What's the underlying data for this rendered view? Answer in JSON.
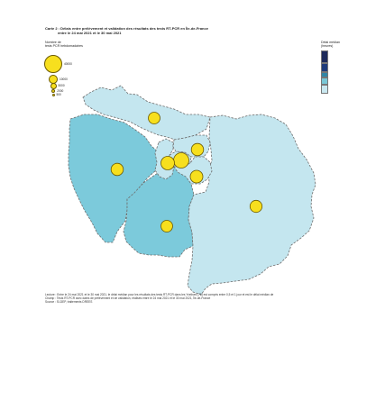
{
  "title": {
    "line1": "Carte 2 : Délais entre prélèvement et validation des résultats des tests RT-PCR en Île-de-France",
    "line2": "entre le 24 mai 2021 et le 30 mai 2021"
  },
  "bubble_legend": {
    "title_line1": "Nombre de",
    "title_line2": "tests PCR hebdomadaires",
    "entries": [
      {
        "label": "40000",
        "size": 1.0
      },
      {
        "label": "10000",
        "size": 0.5
      },
      {
        "label": "5000",
        "size": 0.35
      },
      {
        "label": "2000",
        "size": 0.22
      },
      {
        "label": "500",
        "size": 0.11
      }
    ]
  },
  "color_legend": {
    "title_line1": "Délai médian",
    "title_line2": "(heures)",
    "entries": [
      {
        "label": "",
        "color": "#1e2a5a"
      },
      {
        "label": "",
        "color": "#1f3b7a"
      },
      {
        "label": "",
        "color": "#2f86a6"
      },
      {
        "label": "",
        "color": "#79c7d6"
      },
      {
        "label": "",
        "color": "#c9e8f0"
      }
    ]
  },
  "map": {
    "fill_colors": {
      "dark": "#7ccadb",
      "light": "#c4e6ef",
      "stroke": "#6e6e6e"
    },
    "departments": [
      {
        "id": "95",
        "shade": "light"
      },
      {
        "id": "78",
        "shade": "dark"
      },
      {
        "id": "91",
        "shade": "dark"
      },
      {
        "id": "77",
        "shade": "light"
      },
      {
        "id": "75",
        "shade": "light"
      },
      {
        "id": "92",
        "shade": "light"
      },
      {
        "id": "93",
        "shade": "light"
      },
      {
        "id": "94",
        "shade": "light"
      }
    ],
    "bubbles": [
      {
        "dept": "95",
        "size": 0.35
      },
      {
        "dept": "78",
        "size": 0.38
      },
      {
        "dept": "91",
        "size": 0.35
      },
      {
        "dept": "77",
        "size": 0.37
      },
      {
        "dept": "75",
        "size": 0.55
      },
      {
        "dept": "92",
        "size": 0.45
      },
      {
        "dept": "93",
        "size": 0.38
      },
      {
        "dept": "94",
        "size": 0.4
      }
    ]
  },
  "notes": {
    "line1": "Lecture : Entre le 24 mai 2021 et le 30 mai 2021, le délai médian pour les résultats des tests RT-PCR dans les Yvelines (78) est compris entre 0,5 et 1 jour et est le délai médian de",
    "line2": "Champ : Tests RT-PCR avec dates de prélèvement et de validation, réalisés entre le 24 mai 2021 et le 30 mai 2021, Île-de-France",
    "line3": "Source : SI-DEP, traitements DREES"
  }
}
